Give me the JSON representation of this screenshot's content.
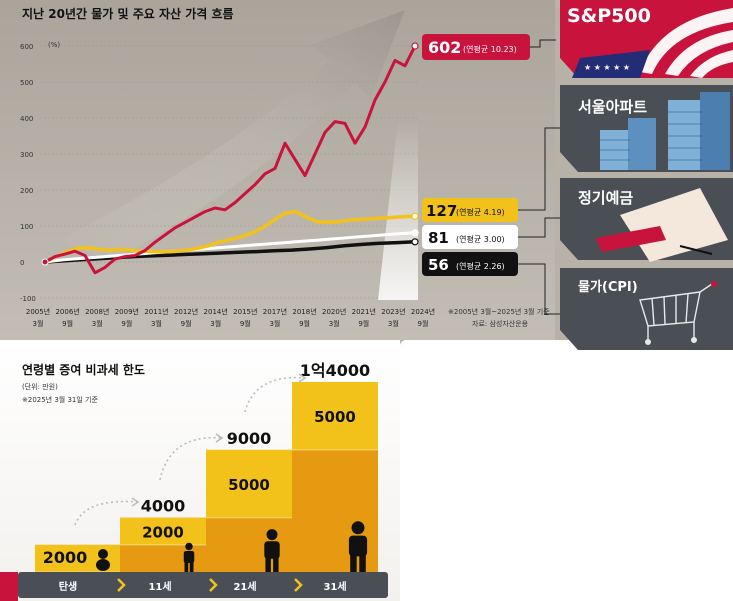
{
  "chart_data": [
    {
      "type": "line",
      "title": "지난 20년간 물가 및 주요 자산 가격 흐름",
      "y_unit": "(%)",
      "ylim": [
        -100,
        650
      ],
      "y_ticks": [
        "600",
        "500",
        "400",
        "300",
        "200",
        "100",
        "0",
        "-100"
      ],
      "x_ticks": [
        {
          "year": "2005년",
          "month": "3월"
        },
        {
          "year": "2006년",
          "month": "9월"
        },
        {
          "year": "2008년",
          "month": "3월"
        },
        {
          "year": "2009년",
          "month": "9월"
        },
        {
          "year": "2011년",
          "month": "3월"
        },
        {
          "year": "2012년",
          "month": "9월"
        },
        {
          "year": "2014년",
          "month": "3월"
        },
        {
          "year": "2015년",
          "month": "9월"
        },
        {
          "year": "2017년",
          "month": "3월"
        },
        {
          "year": "2018년",
          "month": "9월"
        },
        {
          "year": "2020년",
          "month": "3월"
        },
        {
          "year": "2021년",
          "month": "9월"
        },
        {
          "year": "2023년",
          "month": "3월"
        },
        {
          "year": "2024년",
          "month": "9월"
        }
      ],
      "source_note": "※2005년 3월~2025년 3월 기준",
      "source": "자료: 삼성자산운용",
      "series": [
        {
          "name": "S&P500",
          "color": "#c8143c",
          "end_value": "602",
          "avg_label": "(연평균 10.23)",
          "values": [
            0,
            15,
            22,
            30,
            18,
            -30,
            -15,
            8,
            15,
            18,
            32,
            55,
            75,
            95,
            110,
            125,
            140,
            150,
            145,
            165,
            190,
            215,
            245,
            260,
            330,
            285,
            240,
            300,
            360,
            390,
            385,
            330,
            375,
            450,
            500,
            560,
            545,
            600
          ]
        },
        {
          "name": "서울아파트",
          "color": "#f2c21a",
          "end_value": "127",
          "avg_label": "(연평균 4.19)",
          "values": [
            0,
            15,
            28,
            38,
            40,
            35,
            33,
            35,
            32,
            30,
            29,
            28,
            30,
            33,
            38,
            45,
            55,
            62,
            70,
            80,
            95,
            115,
            135,
            140,
            125,
            112,
            110,
            112,
            116,
            118,
            120,
            122,
            124,
            126,
            127
          ]
        },
        {
          "name": "정기예금",
          "color": "#ffffff",
          "end_value": "81",
          "avg_label": "(연평균 3.00)",
          "values": [
            0,
            6,
            10,
            14,
            18,
            22,
            26,
            30,
            34,
            38,
            42,
            46,
            50,
            54,
            58,
            62,
            66,
            70,
            74,
            78,
            81
          ]
        },
        {
          "name": "물가(CPI)",
          "color": "#111111",
          "end_value": "56",
          "avg_label": "(연평균 2.26)",
          "values": [
            0,
            3,
            6,
            9,
            12,
            15,
            17,
            19,
            21,
            23,
            25,
            27,
            29,
            31,
            33,
            36,
            40,
            45,
            49,
            52,
            54,
            56
          ]
        }
      ],
      "categories_right": [
        "S&P500",
        "서울아파트",
        "정기예금",
        "물가(CPI)"
      ]
    },
    {
      "type": "bar",
      "title": "연령별 증여 비과세 한도",
      "unit_note": "(단위: 만원)",
      "date_note": "※2025년 3월 31일 기준",
      "categories": [
        "탄생",
        "11세",
        "21세",
        "31세"
      ],
      "values": [
        2000,
        4000,
        9000,
        14000
      ],
      "value_labels": [
        "2000",
        "4000",
        "9000",
        "1억4000"
      ],
      "increments": [
        "2000",
        "2000",
        "5000",
        "5000"
      ]
    }
  ],
  "colors": {
    "bg_panel": "#b6b0a7",
    "red": "#c8143c",
    "yellow": "#f2c21a",
    "orange": "#e59a12",
    "dark": "#4a4e55"
  }
}
